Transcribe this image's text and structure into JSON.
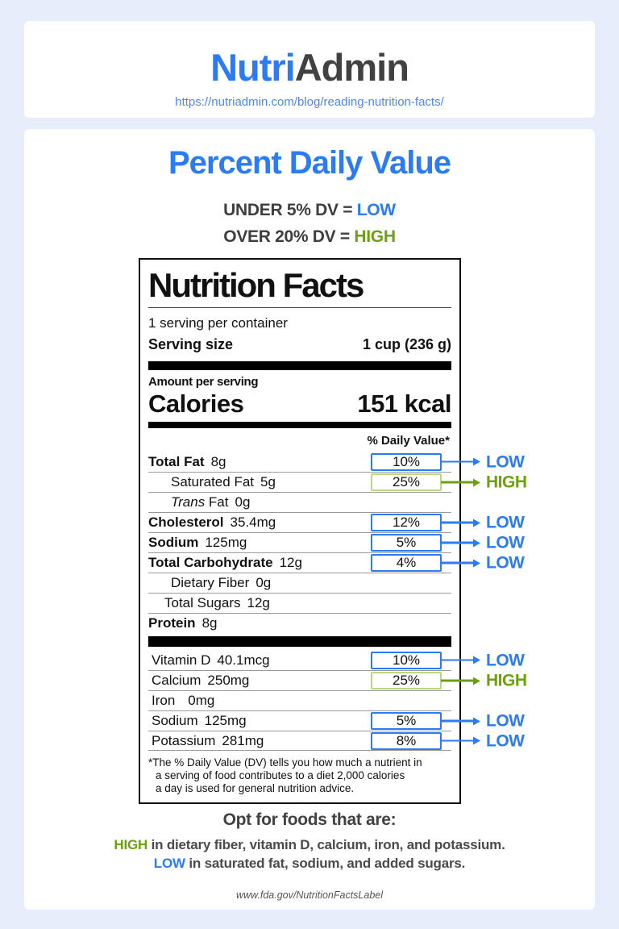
{
  "colors": {
    "background": "#e8edfc",
    "accent_blue": "#2b7bf4",
    "accent_green": "#6da010",
    "green_box_border": "#b9d87f",
    "dark_text": "#3e3e3e"
  },
  "header": {
    "logo_part1": "Nutri",
    "logo_part2": "Admin",
    "url": "https://nutriadmin.com/blog/reading-nutrition-facts/"
  },
  "main": {
    "title": "Percent Daily Value",
    "rule_low_prefix": "UNDER 5% DV = ",
    "rule_low_value": "LOW",
    "rule_high_prefix": "OVER 20% DV = ",
    "rule_high_value": "HIGH"
  },
  "label": {
    "title": "Nutrition Facts",
    "servings_per_container": "1 serving per container",
    "serving_size_label": "Serving size",
    "serving_size_value": "1 cup (236 g)",
    "amount_per_serving": "Amount per serving",
    "calories_label": "Calories",
    "calories_value": "151 kcal",
    "dv_header": "% Daily Value*",
    "rows": [
      {
        "name": "Total Fat",
        "amount": "8g",
        "dv": "10%",
        "badge": "LOW"
      },
      {
        "name": "Saturated Fat",
        "amount": "5g",
        "dv": "25%",
        "badge": "HIGH"
      },
      {
        "name_italic": "Trans",
        "name_rest": " Fat",
        "amount": "0g"
      },
      {
        "name": "Cholesterol",
        "amount": "35.4mg",
        "dv": "12%",
        "badge": "LOW"
      },
      {
        "name": "Sodium",
        "amount": "125mg",
        "dv": "5%",
        "badge": "LOW"
      },
      {
        "name": "Total Carbohydrate",
        "amount": "12g",
        "dv": "4%",
        "badge": "LOW"
      },
      {
        "name": "Dietary Fiber",
        "amount": "0g"
      },
      {
        "name": "Total Sugars",
        "amount": "12g"
      },
      {
        "name": "Protein",
        "amount": "8g"
      },
      {
        "name": "Vitamin D",
        "amount": "40.1mcg",
        "dv": "10%",
        "badge": "LOW"
      },
      {
        "name": "Calcium",
        "amount": "250mg",
        "dv": "25%",
        "badge": "HIGH"
      },
      {
        "name": "Iron",
        "amount": "0mg"
      },
      {
        "name": "Sodium",
        "amount": "125mg",
        "dv": "5%",
        "badge": "LOW"
      },
      {
        "name": "Potassium",
        "amount": "281mg",
        "dv": "8%",
        "badge": "LOW"
      }
    ],
    "footnote_line1": "*The % Daily Value (DV) tells you how much a nutrient in",
    "footnote_line2": "a serving of food contributes to a diet 2,000 calories",
    "footnote_line3": "a day is used for general nutrition advice."
  },
  "tips": {
    "heading": "Opt for foods that are:",
    "high_word": "HIGH",
    "high_rest": " in dietary fiber, vitamin D, calcium, iron, and potassium.",
    "low_word": "LOW",
    "low_rest": " in saturated fat, sodium, and added sugars.",
    "source": "www.fda.gov/NutritionFactsLabel"
  }
}
